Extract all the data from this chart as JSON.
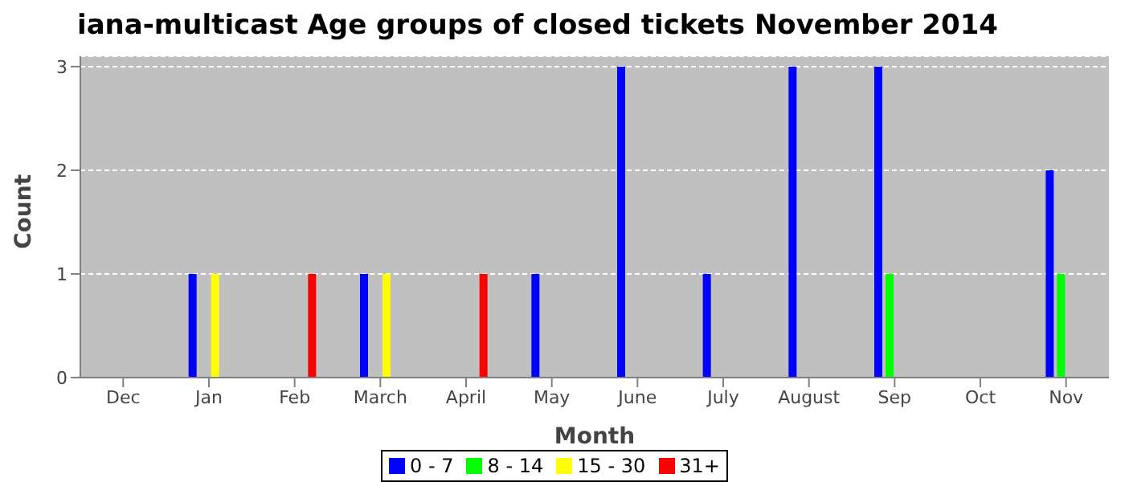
{
  "chart_data": {
    "type": "bar",
    "title": "iana-multicast Age groups of closed tickets November 2014",
    "xlabel": "Month",
    "ylabel": "Count",
    "categories": [
      "Dec",
      "Jan",
      "Feb",
      "March",
      "April",
      "May",
      "June",
      "July",
      "August",
      "Sep",
      "Oct",
      "Nov"
    ],
    "series": [
      {
        "name": "0 - 7",
        "color": "#0000ff",
        "values": [
          0,
          1,
          0,
          1,
          0,
          1,
          3,
          1,
          3,
          3,
          0,
          2
        ]
      },
      {
        "name": "8 - 14",
        "color": "#00ff00",
        "values": [
          0,
          0,
          0,
          0,
          0,
          0,
          0,
          0,
          0,
          1,
          0,
          1
        ]
      },
      {
        "name": "15 - 30",
        "color": "#ffff00",
        "values": [
          0,
          1,
          0,
          1,
          0,
          0,
          0,
          0,
          0,
          0,
          0,
          0
        ]
      },
      {
        "name": "31+",
        "color": "#ff0000",
        "values": [
          0,
          0,
          1,
          0,
          1,
          0,
          0,
          0,
          0,
          0,
          0,
          0
        ]
      }
    ],
    "ylim": [
      0,
      3.1
    ],
    "yticks": [
      0,
      1,
      2,
      3
    ],
    "grid": "y",
    "legend": "bottom"
  }
}
